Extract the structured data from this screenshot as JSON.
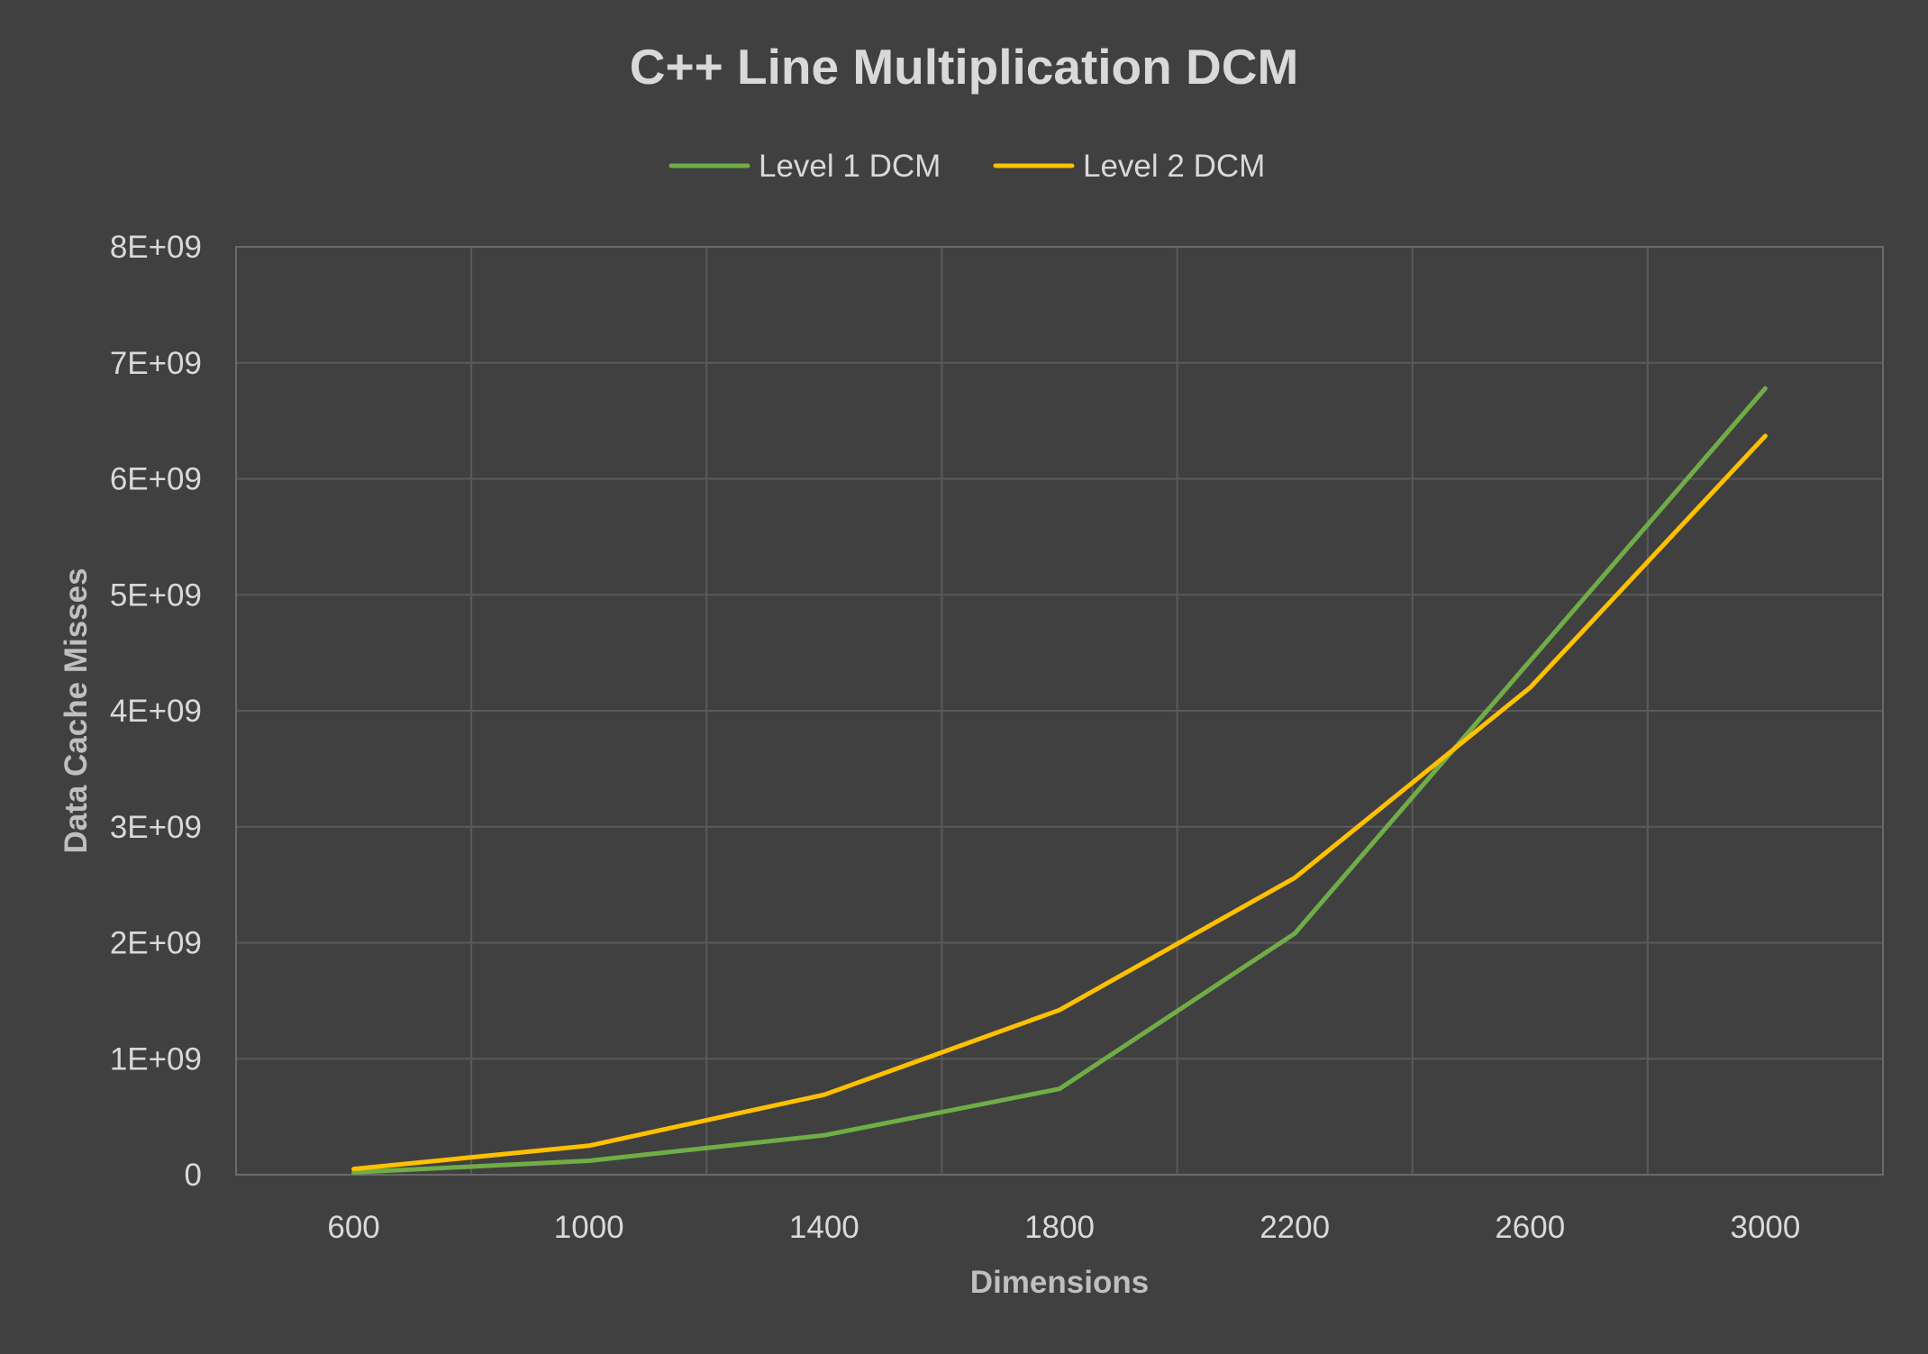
{
  "chart_data": {
    "type": "line",
    "title": "C++ Line Multiplication DCM",
    "xlabel": "Dimensions",
    "ylabel": "Data Cache Misses",
    "x": [
      600,
      1000,
      1400,
      1800,
      2200,
      2600,
      3000
    ],
    "x_tick_labels": [
      "600",
      "1000",
      "1400",
      "1800",
      "2200",
      "2600",
      "3000"
    ],
    "ylim": [
      0,
      8000000000
    ],
    "y_tick_values": [
      0,
      1000000000,
      2000000000,
      3000000000,
      4000000000,
      5000000000,
      6000000000,
      7000000000,
      8000000000
    ],
    "y_tick_labels": [
      "0",
      "1E+09",
      "2E+09",
      "3E+09",
      "4E+09",
      "5E+09",
      "6E+09",
      "7E+09",
      "8E+09"
    ],
    "grid": true,
    "legend_position": "top",
    "series": [
      {
        "name": "Level 1 DCM",
        "color": "#70ad47",
        "values": [
          20000000,
          120000000,
          340000000,
          740000000,
          2080000000,
          4430000000,
          6780000000
        ]
      },
      {
        "name": "Level 2 DCM",
        "color": "#ffc000",
        "values": [
          50000000,
          250000000,
          690000000,
          1420000000,
          2560000000,
          4200000000,
          6370000000
        ]
      }
    ],
    "colors": {
      "background": "#404040",
      "gridline": "#5a5a5a",
      "text": "#d9d9d9"
    }
  }
}
